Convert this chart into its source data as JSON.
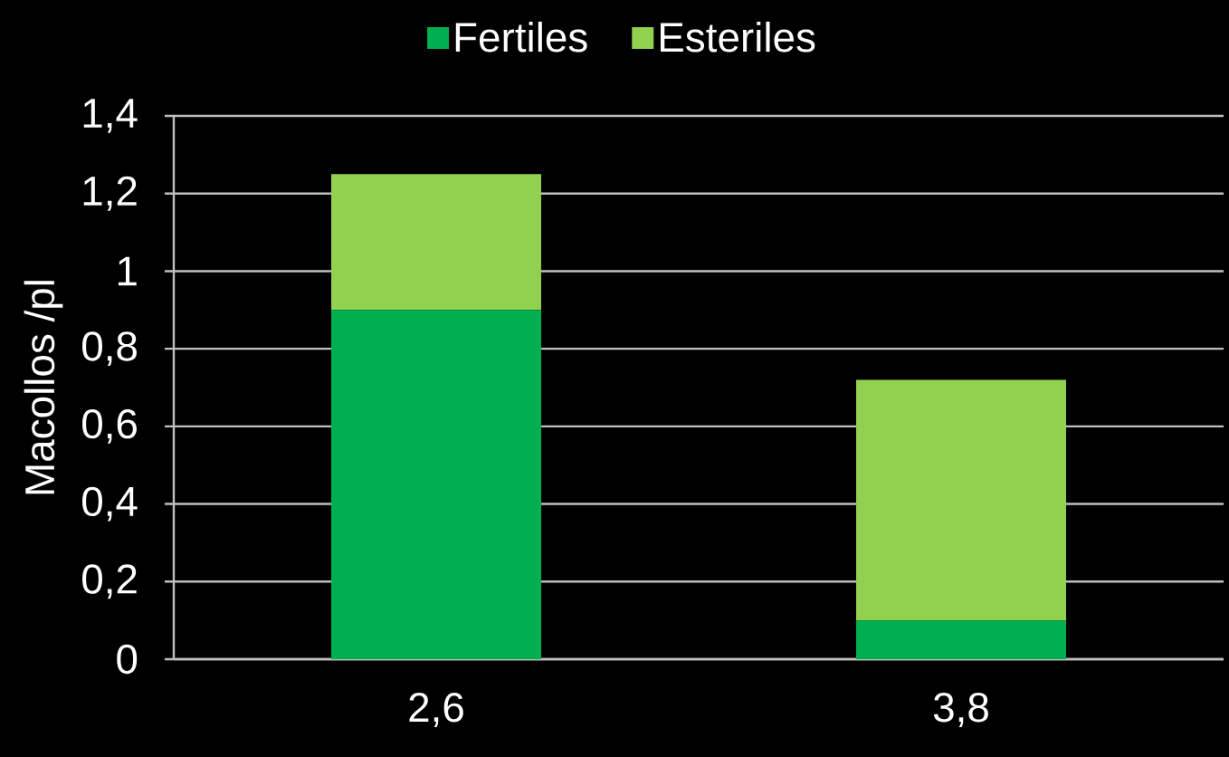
{
  "chart_data": {
    "type": "bar",
    "stacked": true,
    "categories": [
      "2,6",
      "3,8"
    ],
    "series": [
      {
        "name": "Fertiles",
        "color": "#00b050",
        "values": [
          0.9,
          0.1
        ]
      },
      {
        "name": "Esteriles",
        "color": "#92d050",
        "values": [
          0.35,
          0.62
        ]
      }
    ],
    "ylabel": "Macollos /pl",
    "ylim": [
      0,
      1.4
    ],
    "yticks": [
      0,
      {
        "value": 0.2,
        "label": "0,2"
      },
      {
        "value": 0.4,
        "label": "0,4"
      },
      {
        "value": 0.6,
        "label": "0,6"
      },
      {
        "value": 0.8,
        "label": "0,8"
      },
      1,
      {
        "value": 1.2,
        "label": "1,2"
      },
      {
        "value": 1.4,
        "label": "1,4"
      }
    ],
    "grid": "y",
    "legend": "top"
  }
}
